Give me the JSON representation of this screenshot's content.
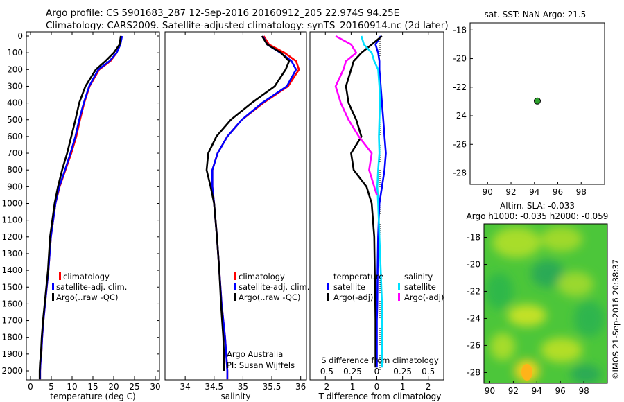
{
  "header": {
    "line1": "Argo profile: CS 5901683_287 12-Sep-2016 20160912_205 22.974S 94.25E",
    "line2": "Climatology: CARS2009. Satellite-adjusted climatology: synTS_20160914.nc (2d later)"
  },
  "colors": {
    "climatology": "#ff0000",
    "satellite": "#0000ff",
    "argo": "#000000",
    "sal_satellite": "#00e0ff",
    "sal_argo": "#ff00ff",
    "marker": "#2ca02c"
  },
  "chart_data": [
    {
      "id": "temperature",
      "type": "line",
      "xlabel": "temperature (deg C)",
      "ylabel": "",
      "xlim": [
        -1,
        31
      ],
      "ylim": [
        2100,
        0
      ],
      "xticks": [
        0,
        5,
        10,
        15,
        20,
        25,
        30
      ],
      "yticks": [
        0,
        100,
        200,
        300,
        400,
        500,
        600,
        700,
        800,
        900,
        1000,
        1100,
        1200,
        1300,
        1400,
        1500,
        1600,
        1700,
        1800,
        1900,
        2000
      ],
      "legend": [
        "climatology",
        "satellite-adj. clim.",
        "Argo(..raw -QC)"
      ],
      "series": [
        {
          "name": "climatology",
          "color": "#ff0000",
          "x": [
            21.8,
            21.5,
            20.7,
            19.2,
            16.5,
            14.2,
            12.9,
            11.9,
            11.0,
            9.8,
            8.4,
            7.0,
            6.0,
            4.9,
            4.3,
            3.9,
            3.5,
            3.1,
            2.8,
            2.6,
            2.4,
            2.3,
            2.3
          ],
          "y": [
            0,
            50,
            100,
            150,
            200,
            300,
            400,
            500,
            600,
            700,
            800,
            900,
            1000,
            1200,
            1400,
            1500,
            1600,
            1700,
            1800,
            1900,
            1950,
            2000,
            2050
          ]
        },
        {
          "name": "satellite-adj. clim.",
          "color": "#0000ff",
          "x": [
            22.0,
            21.6,
            20.7,
            19.0,
            16.3,
            14.1,
            12.8,
            11.7,
            10.8,
            9.6,
            8.3,
            6.9,
            6.0,
            4.9,
            4.3,
            3.9,
            3.5,
            3.1,
            2.8,
            2.6,
            2.4,
            2.3,
            2.3
          ],
          "y": [
            0,
            50,
            100,
            150,
            200,
            300,
            400,
            500,
            600,
            700,
            800,
            900,
            1000,
            1200,
            1400,
            1500,
            1600,
            1700,
            1800,
            1900,
            1950,
            2000,
            2050
          ]
        },
        {
          "name": "Argo(..raw -QC)",
          "color": "#000000",
          "x": [
            21.7,
            21.4,
            20.0,
            18.0,
            15.7,
            13.2,
            11.7,
            10.8,
            9.8,
            8.8,
            7.6,
            6.6,
            5.8,
            4.7,
            4.2,
            3.8,
            3.4,
            3.0,
            2.7,
            2.5,
            2.3,
            2.2,
            2.2
          ],
          "y": [
            0,
            50,
            100,
            150,
            200,
            300,
            400,
            500,
            600,
            700,
            800,
            900,
            1000,
            1200,
            1400,
            1500,
            1600,
            1700,
            1800,
            1900,
            1950,
            2000,
            2050
          ]
        }
      ]
    },
    {
      "id": "salinity",
      "type": "line",
      "xlabel": "salinity",
      "ylabel": "",
      "xlim": [
        33.65,
        36.1
      ],
      "ylim": [
        2100,
        0
      ],
      "xticks": [
        34,
        34.5,
        35,
        35.5,
        36
      ],
      "legend": [
        "climatology",
        "satellite-adj. clim.",
        "Argo(..raw -QC)"
      ],
      "annotation": [
        "Argo Australia",
        "PI: Susan Wijffels"
      ],
      "series": [
        {
          "name": "climatology",
          "color": "#ff0000",
          "x": [
            35.36,
            35.45,
            35.72,
            35.92,
            35.97,
            35.78,
            35.35,
            34.98,
            34.73,
            34.56,
            34.47,
            34.47,
            34.5,
            34.55,
            34.59,
            34.63,
            34.66,
            34.69,
            34.71,
            34.72,
            34.73,
            34.73
          ],
          "y": [
            0,
            50,
            100,
            150,
            200,
            300,
            400,
            500,
            600,
            700,
            800,
            900,
            1000,
            1200,
            1400,
            1600,
            1700,
            1800,
            1900,
            1950,
            2000,
            2050
          ]
        },
        {
          "name": "satellite-adj. clim.",
          "color": "#0000ff",
          "x": [
            35.34,
            35.42,
            35.65,
            35.84,
            35.92,
            35.76,
            35.33,
            34.98,
            34.73,
            34.56,
            34.47,
            34.47,
            34.5,
            34.55,
            34.59,
            34.63,
            34.66,
            34.69,
            34.71,
            34.72,
            34.73,
            34.73
          ],
          "y": [
            0,
            50,
            100,
            150,
            200,
            300,
            400,
            500,
            600,
            700,
            800,
            900,
            1000,
            1200,
            1400,
            1600,
            1700,
            1800,
            1900,
            1950,
            2000,
            2050
          ]
        },
        {
          "name": "Argo(..raw -QC)",
          "color": "#000000",
          "x": [
            35.33,
            35.42,
            35.66,
            35.8,
            35.74,
            35.55,
            35.15,
            34.79,
            34.54,
            34.4,
            34.37,
            34.44,
            34.5,
            34.55,
            34.59,
            34.62,
            34.64,
            34.66,
            34.67,
            34.67,
            34.67
          ],
          "y": [
            0,
            50,
            100,
            150,
            200,
            300,
            400,
            500,
            600,
            700,
            800,
            900,
            1000,
            1200,
            1400,
            1600,
            1700,
            1800,
            1900,
            1950,
            2000
          ]
        }
      ]
    },
    {
      "id": "difference",
      "type": "line",
      "xlabel": "T difference from climatology",
      "xlabel_top": "S difference from climatology",
      "xlim": [
        -2.6,
        2.6
      ],
      "ylim": [
        2100,
        0
      ],
      "xticks": [
        -2,
        -1,
        0,
        1,
        2
      ],
      "xticks_s": [
        "-0.5",
        "-0.25",
        "0",
        "0.25",
        "0.5"
      ],
      "legend": {
        "temperature_header": "temperature",
        "salinity_header": "salinity",
        "temperature_items": [
          "satellite",
          "Argo(-adj)"
        ],
        "salinity_items": [
          "satellite",
          "Argo(-adj)"
        ]
      },
      "series": [
        {
          "name": "satellite",
          "color": "#0000ff",
          "x": [
            0.15,
            -0.05,
            0.05,
            0.1,
            0.1,
            0.15,
            0.2,
            0.25,
            0.3,
            0.35,
            0.3,
            0.2,
            0.1,
            0.05,
            0.03,
            0.02,
            0.0,
            0.0,
            0.0,
            0.0
          ],
          "y": [
            0,
            50,
            100,
            150,
            200,
            300,
            400,
            500,
            600,
            700,
            800,
            900,
            1000,
            1200,
            1400,
            1600,
            1700,
            1800,
            1900,
            1980
          ]
        },
        {
          "name": "Argo(-adj)",
          "color": "#000000",
          "x": [
            0.2,
            -0.2,
            -0.6,
            -0.9,
            -1.0,
            -1.2,
            -1.1,
            -0.8,
            -0.6,
            -1.0,
            -0.9,
            -0.4,
            -0.2,
            -0.1,
            -0.08,
            -0.06,
            -0.05,
            -0.05,
            -0.05,
            -0.05
          ],
          "y": [
            0,
            50,
            100,
            150,
            200,
            300,
            400,
            500,
            600,
            700,
            800,
            900,
            1000,
            1200,
            1400,
            1600,
            1700,
            1800,
            1900,
            1980
          ]
        },
        {
          "name": "satellite",
          "color": "#00e0ff",
          "x": [
            -0.6,
            -0.5,
            -0.2,
            -0.1,
            0.05,
            0.1,
            0.12,
            0.1,
            0.08,
            0.1,
            0.05,
            0.02,
            0.05,
            0.1,
            0.15,
            0.2,
            0.2,
            0.2,
            0.2,
            0.2
          ],
          "y": [
            0,
            50,
            100,
            150,
            200,
            300,
            400,
            500,
            600,
            700,
            800,
            900,
            1000,
            1200,
            1400,
            1600,
            1700,
            1800,
            1900,
            1980
          ]
        },
        {
          "name": "Argo(-adj)",
          "color": "#ff00ff",
          "x": [
            -1.6,
            -1.0,
            -0.8,
            -1.2,
            -1.3,
            -1.6,
            -1.4,
            -1.1,
            -0.7,
            -0.2,
            -0.3,
            -0.1,
            0.0
          ],
          "y": [
            0,
            50,
            100,
            150,
            200,
            300,
            400,
            500,
            600,
            700,
            800,
            900,
            950
          ]
        }
      ]
    },
    {
      "id": "location",
      "type": "scatter",
      "title": "sat. SST: NaN Argo: 21.5",
      "xlim": [
        88.5,
        100
      ],
      "ylim": [
        -28.8,
        -17.5
      ],
      "xticks": [
        90,
        92,
        94,
        96,
        98
      ],
      "yticks": [
        -18,
        -20,
        -22,
        -24,
        -26,
        -28
      ],
      "points": [
        {
          "x": 94.25,
          "y": -22.97
        }
      ]
    },
    {
      "id": "sla_map",
      "type": "heatmap",
      "title_line1": "Altim. SLA: -0.033",
      "title_line2": "Argo h1000: -0.035 h2000: -0.059",
      "xlim": [
        89.5,
        100
      ],
      "ylim": [
        -28.8,
        -17
      ],
      "xticks": [
        90,
        92,
        94,
        96,
        98
      ],
      "yticks": [
        -18,
        -20,
        -22,
        -24,
        -26,
        -28
      ]
    }
  ],
  "footer": {
    "credit": "©IMOS 21-Sep-2016 20:38:37"
  }
}
